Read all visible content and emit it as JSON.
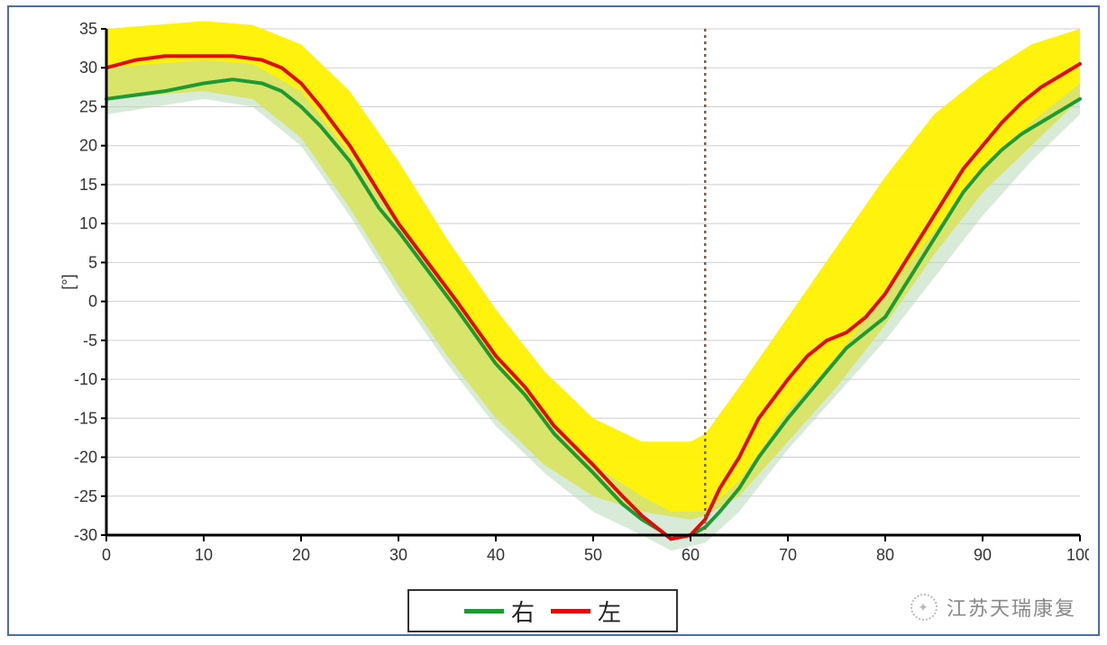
{
  "chart": {
    "type": "line",
    "ylabel": "[°]",
    "ylabel_fontsize": 18,
    "xlim": [
      0,
      100
    ],
    "ylim": [
      -30,
      35
    ],
    "xtick_step": 10,
    "ytick_step": 5,
    "tick_fontsize": 18,
    "tick_color": "#333333",
    "axis_color": "#000000",
    "axis_width": 3,
    "grid_color": "#cfcfcf",
    "grid_width": 1,
    "background_color": "#ffffff",
    "frame_color": "#4a6ea8",
    "vertical_marker": {
      "x": 61.5,
      "color": "#8b5a3c",
      "dash": "3,4",
      "width": 2.5
    },
    "band": {
      "color": "#fff200",
      "opacity": 0.95,
      "upper": [
        [
          0,
          35
        ],
        [
          5,
          35.5
        ],
        [
          10,
          36
        ],
        [
          15,
          35.5
        ],
        [
          20,
          33
        ],
        [
          25,
          27
        ],
        [
          30,
          18
        ],
        [
          35,
          8
        ],
        [
          40,
          -1
        ],
        [
          45,
          -9
        ],
        [
          50,
          -15
        ],
        [
          55,
          -18
        ],
        [
          60,
          -18
        ],
        [
          61.5,
          -17
        ],
        [
          65,
          -11
        ],
        [
          70,
          -2
        ],
        [
          75,
          7
        ],
        [
          80,
          16
        ],
        [
          85,
          24
        ],
        [
          90,
          29
        ],
        [
          95,
          33
        ],
        [
          100,
          35
        ]
      ],
      "lower": [
        [
          0,
          26
        ],
        [
          5,
          26.5
        ],
        [
          10,
          27
        ],
        [
          15,
          26
        ],
        [
          20,
          21
        ],
        [
          25,
          12
        ],
        [
          30,
          2
        ],
        [
          35,
          -7
        ],
        [
          40,
          -15
        ],
        [
          45,
          -21
        ],
        [
          50,
          -25
        ],
        [
          55,
          -27
        ],
        [
          60,
          -28
        ],
        [
          61.5,
          -27.5
        ],
        [
          65,
          -25
        ],
        [
          70,
          -18
        ],
        [
          75,
          -11
        ],
        [
          80,
          -3
        ],
        [
          85,
          6
        ],
        [
          90,
          14
        ],
        [
          95,
          20
        ],
        [
          100,
          26
        ]
      ]
    },
    "overlay_band": {
      "color": "#b8d8b8",
      "opacity": 0.55,
      "upper": [
        [
          0,
          30
        ],
        [
          5,
          30.5
        ],
        [
          10,
          31
        ],
        [
          15,
          30.5
        ],
        [
          20,
          27
        ],
        [
          25,
          19
        ],
        [
          30,
          10
        ],
        [
          35,
          1
        ],
        [
          40,
          -8
        ],
        [
          45,
          -15
        ],
        [
          50,
          -21
        ],
        [
          55,
          -25
        ],
        [
          58,
          -27
        ],
        [
          61.5,
          -27
        ],
        [
          65,
          -23
        ],
        [
          70,
          -14
        ],
        [
          75,
          -7
        ],
        [
          80,
          1
        ],
        [
          85,
          9
        ],
        [
          90,
          17
        ],
        [
          95,
          23
        ],
        [
          100,
          28
        ]
      ],
      "lower": [
        [
          0,
          24
        ],
        [
          5,
          25
        ],
        [
          10,
          26
        ],
        [
          15,
          25
        ],
        [
          20,
          20
        ],
        [
          25,
          11
        ],
        [
          30,
          1
        ],
        [
          35,
          -8
        ],
        [
          40,
          -16
        ],
        [
          45,
          -22
        ],
        [
          50,
          -27
        ],
        [
          55,
          -30
        ],
        [
          58,
          -32
        ],
        [
          61.5,
          -31
        ],
        [
          65,
          -27
        ],
        [
          70,
          -19
        ],
        [
          75,
          -12
        ],
        [
          80,
          -5
        ],
        [
          85,
          3
        ],
        [
          90,
          11
        ],
        [
          95,
          18
        ],
        [
          100,
          24
        ]
      ]
    },
    "series": [
      {
        "name": "right",
        "label": "右",
        "color": "#1d9a33",
        "width": 4,
        "points": [
          [
            0,
            26
          ],
          [
            3,
            26.5
          ],
          [
            6,
            27
          ],
          [
            10,
            28
          ],
          [
            13,
            28.5
          ],
          [
            16,
            28
          ],
          [
            18,
            27
          ],
          [
            20,
            25
          ],
          [
            22,
            22.5
          ],
          [
            25,
            18
          ],
          [
            28,
            12
          ],
          [
            30,
            9
          ],
          [
            33,
            4
          ],
          [
            36,
            -1
          ],
          [
            40,
            -8
          ],
          [
            43,
            -12
          ],
          [
            46,
            -17
          ],
          [
            50,
            -22
          ],
          [
            53,
            -26
          ],
          [
            55,
            -28
          ],
          [
            57,
            -29.5
          ],
          [
            58,
            -30.5
          ],
          [
            60,
            -30
          ],
          [
            61.5,
            -29
          ],
          [
            63,
            -27
          ],
          [
            65,
            -24
          ],
          [
            67,
            -20
          ],
          [
            70,
            -15
          ],
          [
            72,
            -12
          ],
          [
            74,
            -9
          ],
          [
            76,
            -6
          ],
          [
            78,
            -4
          ],
          [
            80,
            -2
          ],
          [
            82,
            2
          ],
          [
            84,
            6
          ],
          [
            86,
            10
          ],
          [
            88,
            14
          ],
          [
            90,
            17
          ],
          [
            92,
            19.5
          ],
          [
            94,
            21.5
          ],
          [
            96,
            23
          ],
          [
            98,
            24.5
          ],
          [
            100,
            26
          ]
        ]
      },
      {
        "name": "left",
        "label": "左",
        "color": "#e10b0b",
        "width": 4,
        "points": [
          [
            0,
            30
          ],
          [
            3,
            31
          ],
          [
            6,
            31.5
          ],
          [
            10,
            31.5
          ],
          [
            13,
            31.5
          ],
          [
            16,
            31
          ],
          [
            18,
            30
          ],
          [
            20,
            28
          ],
          [
            22,
            25
          ],
          [
            25,
            20
          ],
          [
            28,
            14
          ],
          [
            30,
            10
          ],
          [
            33,
            5
          ],
          [
            36,
            0
          ],
          [
            40,
            -7
          ],
          [
            43,
            -11
          ],
          [
            46,
            -16
          ],
          [
            50,
            -21
          ],
          [
            53,
            -25
          ],
          [
            55,
            -27.5
          ],
          [
            57,
            -29.5
          ],
          [
            58,
            -30.5
          ],
          [
            60,
            -30
          ],
          [
            61.5,
            -28
          ],
          [
            63,
            -24
          ],
          [
            65,
            -20
          ],
          [
            67,
            -15
          ],
          [
            70,
            -10
          ],
          [
            72,
            -7
          ],
          [
            74,
            -5
          ],
          [
            76,
            -4
          ],
          [
            78,
            -2
          ],
          [
            80,
            1
          ],
          [
            82,
            5
          ],
          [
            84,
            9
          ],
          [
            86,
            13
          ],
          [
            88,
            17
          ],
          [
            90,
            20
          ],
          [
            92,
            23
          ],
          [
            94,
            25.5
          ],
          [
            96,
            27.5
          ],
          [
            98,
            29
          ],
          [
            100,
            30.5
          ]
        ]
      }
    ]
  },
  "legend": {
    "fontsize": 26,
    "border_color": "#333333",
    "swatch_width": 44,
    "line_width": 5
  },
  "watermark": {
    "text": "江苏天瑞康复",
    "color": "#888888",
    "fontsize": 22
  }
}
